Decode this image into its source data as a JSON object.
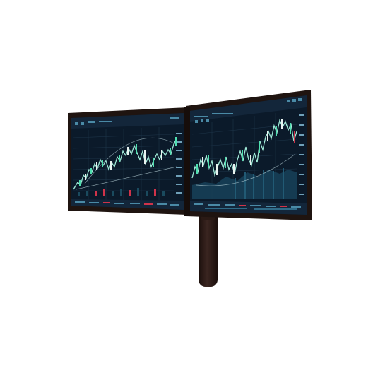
{
  "scene": {
    "subject": "dual-monitor-trading-setup",
    "colors": {
      "bezel": "#1f1410",
      "screen_bg": "#0b1a2a",
      "grid": "#1d3448",
      "candle_up": "#4fe0b0",
      "candle_down": "#e8f3f0",
      "price_line": "#9fe8d6",
      "volume": "#1a4a5e",
      "accent_red": "#d0334a",
      "toolbar": "#13263a",
      "axis_text": "#6fa0b8"
    },
    "icons": [
      "toolbar-icon",
      "chart-icon"
    ]
  }
}
